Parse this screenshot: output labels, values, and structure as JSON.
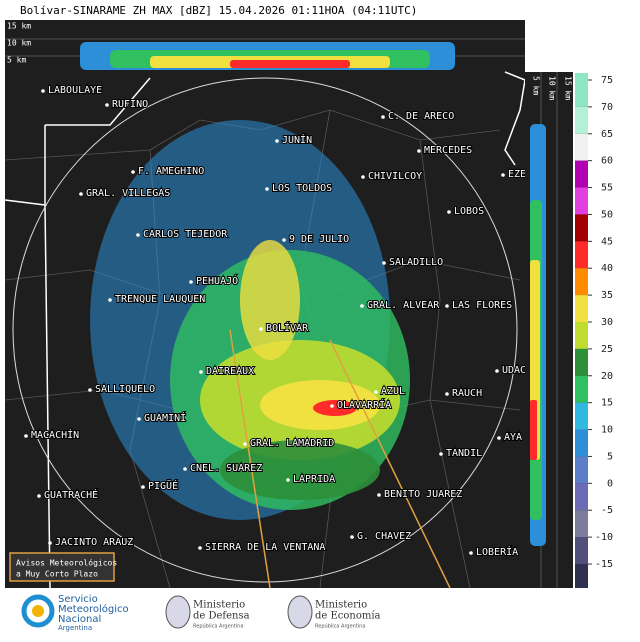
{
  "header": {
    "title": "Bolívar-SINARAME ZH MAX [dBZ] 15.04.2026 01:11HOA (04:11UTC)"
  },
  "top_panel": {
    "labels": [
      "15 km",
      "10 km",
      "5 km"
    ]
  },
  "side_panel": {
    "labels": [
      "15 km",
      "10 km",
      "5 km"
    ]
  },
  "colorbar": {
    "ticks": [
      75,
      70,
      65,
      60,
      55,
      50,
      45,
      40,
      35,
      30,
      25,
      20,
      15,
      10,
      5,
      0,
      -5,
      -10,
      -15
    ],
    "colors": [
      "#8ee6c4",
      "#b4f0d8",
      "#f0f0f0",
      "#b000b0",
      "#e040e0",
      "#a00000",
      "#ff2a2a",
      "#ff8c00",
      "#f0e040",
      "#c0dc30",
      "#2e8f3a",
      "#30c060",
      "#30b8e0",
      "#2c8fd8",
      "#5a7ec8",
      "#6c6cb4",
      "#7c7c9c",
      "#50507a"
    ]
  },
  "cities": [
    "LABOULAYE",
    "RUFINO",
    "C. DE ARECO",
    "JUNÍN",
    "MERCEDES",
    "F. AMEGHINO",
    "GRAL. VILLEGAS",
    "LOS TOLDOS",
    "CHIVILCOY",
    "EZE",
    "LOBOS",
    "CARLOS TEJEDOR",
    "9 DE JULIO",
    "SALADILLO",
    "PEHUAJÓ",
    "TRENQUE LAUQUEN",
    "GRAL. ALVEAR",
    "LAS FLORES",
    "BOLÍVAR",
    "UDAC",
    "DAIREAUX",
    "SALLIQUELO",
    "AZUL",
    "RAUCH",
    "OLAVARRÍA",
    "GUAMINÍ",
    "AYA",
    "MACACHÍN",
    "GRAL. LAMADRID",
    "TANDIL",
    "CNEL. SUAREZ",
    "LAPRIDA",
    "PIGÜÉ",
    "GUATRACHÉ",
    "BENITO JUAREZ",
    "G. CHAVEZ",
    "JACINTO ARAUZ",
    "SIERRA DE LA VENTANA",
    "LOBERÍA"
  ],
  "notice": {
    "lines": [
      "Avisos Meteorológicos",
      "a Muy Corto Plazo"
    ]
  },
  "footer": {
    "smn": [
      "Servicio",
      "Meteorológico",
      "Nacional",
      "Argentina"
    ],
    "defensa": [
      "Ministerio",
      "de Defensa",
      "República Argentina"
    ],
    "economia": [
      "Ministerio",
      "de Economía",
      "República Argentina"
    ]
  }
}
